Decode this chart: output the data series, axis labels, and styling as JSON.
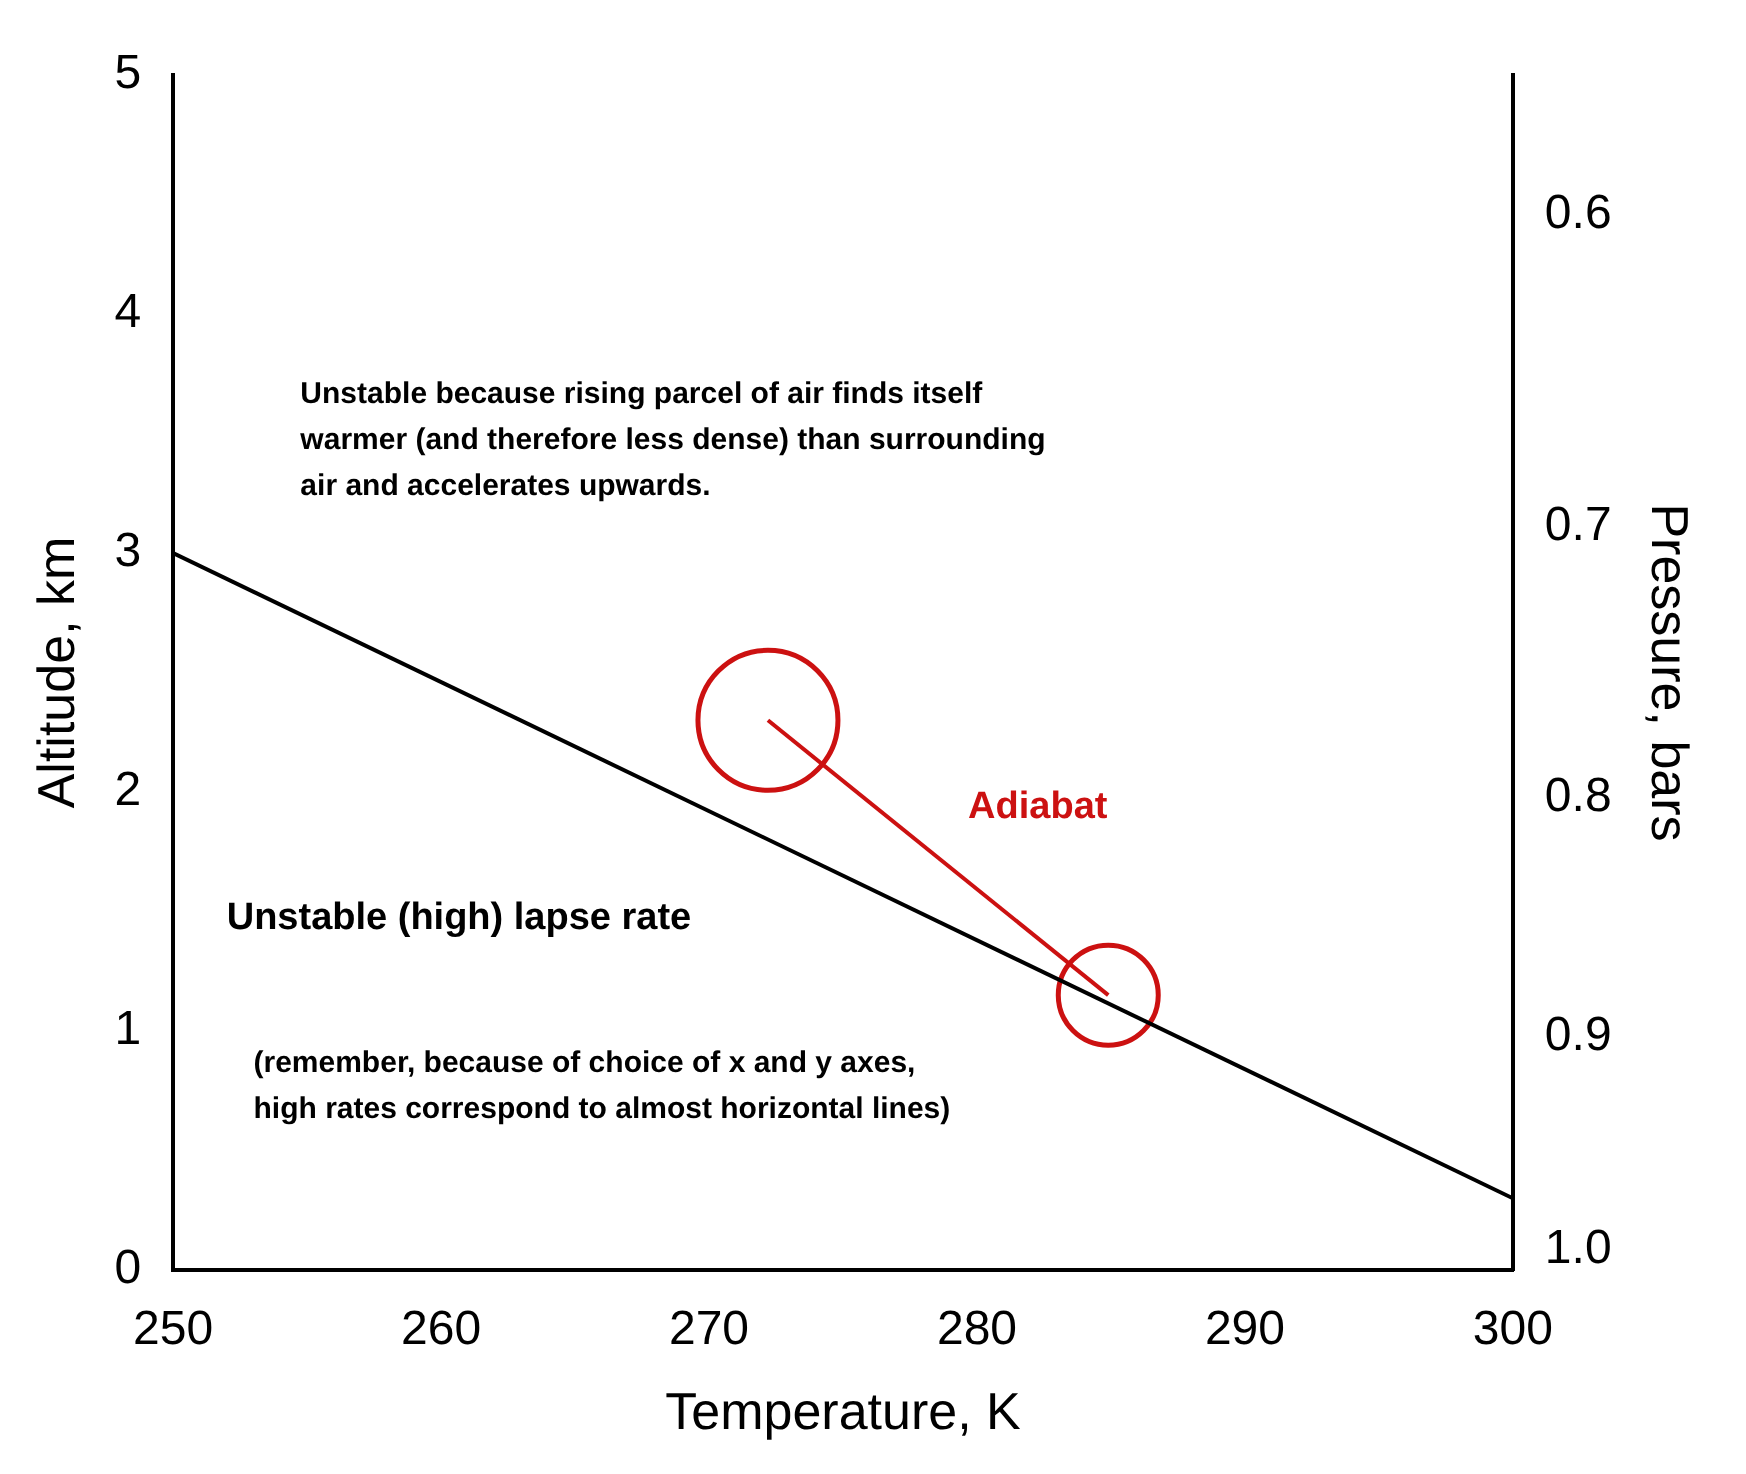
{
  "chart_data": {
    "type": "line",
    "xlabel": "Temperature, K",
    "ylabel": "Altitude, km",
    "y2label": "Pressure, bars",
    "xlim": [
      250,
      300
    ],
    "xticks": [
      250,
      260,
      270,
      280,
      290,
      300
    ],
    "ylim": [
      0,
      5
    ],
    "yticks": [
      0,
      1,
      2,
      3,
      4,
      5
    ],
    "y2lim": [
      1.01,
      0.56
    ],
    "y2ticks": [
      {
        "value": 1.0,
        "label": "1.0"
      },
      0.9,
      0.8,
      0.7,
      0.6
    ],
    "log": "y2",
    "series": [
      {
        "color": "#000000",
        "x": [
          250,
          300
        ],
        "values": [
          3.0,
          0.3
        ]
      },
      {
        "name": "Adiabat",
        "color": "#cc1111",
        "x": [
          272.2,
          284.9
        ],
        "values": [
          2.3,
          1.15
        ]
      },
      {
        "type": "bubble",
        "color": "#cc1111",
        "x": [
          272.2,
          284.9
        ],
        "values": [
          2.3,
          1.15
        ],
        "sizes": [
          1,
          0.51
        ]
      }
    ],
    "annotations": [
      "Unstable because rising parcel of air finds itself warmer (and therefore less dense) than surrounding air and accelerates upwards.",
      "Unstable (high) lapse rate",
      "(remember, because of choice of x and y axes, high rates correspond to almost horizontal lines)"
    ],
    "grid": false,
    "legend": false,
    "line_style": "solid"
  }
}
